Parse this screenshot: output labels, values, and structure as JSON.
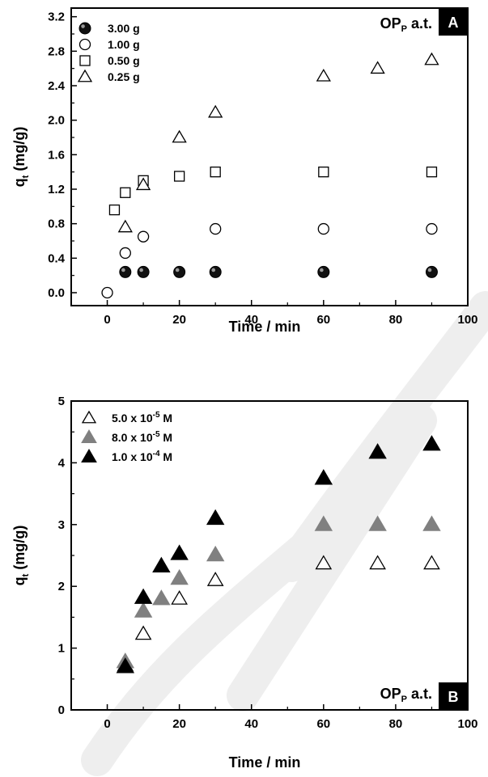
{
  "chart_data": [
    {
      "type": "scatter",
      "panel_label": "A",
      "annotation": {
        "main": "OP",
        "sub": "P",
        "rest": " a.t."
      },
      "xlabel": "Time  / min",
      "ylabel": {
        "main": "q",
        "sub": "t",
        "rest": " (mg/g)"
      },
      "xlim": [
        -10,
        100
      ],
      "ylim": [
        -0.15,
        3.3
      ],
      "xticks": [
        "0",
        "20",
        "40",
        "60",
        "80",
        "100"
      ],
      "yticks": [
        "0.0",
        "0.4",
        "0.8",
        "1.2",
        "1.6",
        "2.0",
        "2.4",
        "2.8",
        "3.2"
      ],
      "legend_position": "top-left",
      "series": [
        {
          "name": "3.00 g",
          "marker": "circle-filled",
          "color": "#000000",
          "x": [
            5,
            10,
            20,
            30,
            60,
            90
          ],
          "y": [
            0.24,
            0.24,
            0.24,
            0.24,
            0.24,
            0.24
          ]
        },
        {
          "name": "1.00 g",
          "marker": "circle-open",
          "color": "#000000",
          "x": [
            0,
            5,
            10,
            30,
            60,
            90
          ],
          "y": [
            0.0,
            0.46,
            0.65,
            0.74,
            0.74,
            0.74
          ]
        },
        {
          "name": "0.50 g",
          "marker": "square-open",
          "color": "#000000",
          "x": [
            2,
            5,
            10,
            20,
            30,
            60,
            90
          ],
          "y": [
            0.96,
            1.16,
            1.3,
            1.35,
            1.4,
            1.4,
            1.4
          ]
        },
        {
          "name": "0.25 g",
          "marker": "triangle-open",
          "color": "#000000",
          "x": [
            5,
            10,
            20,
            30,
            60,
            75,
            90
          ],
          "y": [
            0.76,
            1.25,
            1.8,
            2.09,
            2.51,
            2.6,
            2.7
          ]
        }
      ]
    },
    {
      "type": "scatter",
      "panel_label": "B",
      "annotation": {
        "main": "OP",
        "sub": "P",
        "rest": " a.t."
      },
      "xlabel": "Time  / min",
      "ylabel": {
        "main": "q",
        "sub": "t",
        "rest": " (mg/g)"
      },
      "xlim": [
        -10,
        100
      ],
      "ylim": [
        0,
        5
      ],
      "xticks": [
        "0",
        "20",
        "40",
        "60",
        "80",
        "100"
      ],
      "yticks": [
        "0",
        "1",
        "2",
        "3",
        "4",
        "5"
      ],
      "legend_position": "top-left",
      "series": [
        {
          "name_parts": [
            "5.0 x 10",
            "-5",
            " M"
          ],
          "marker": "triangle-open",
          "color": "#000000",
          "x": [
            5,
            10,
            20,
            30,
            60,
            75,
            90
          ],
          "y": [
            0.72,
            1.23,
            1.8,
            2.1,
            2.37,
            2.37,
            2.37
          ]
        },
        {
          "name_parts": [
            "8.0 x 10",
            "-5",
            " M"
          ],
          "marker": "triangle-filled",
          "color": "#808080",
          "x": [
            5,
            10,
            15,
            20,
            30,
            60,
            75,
            90
          ],
          "y": [
            0.78,
            1.6,
            1.8,
            2.13,
            2.51,
            3.0,
            3.0,
            3.0
          ]
        },
        {
          "name_parts": [
            "1.0 x 10",
            "-4",
            " M"
          ],
          "marker": "triangle-filled",
          "color": "#000000",
          "x": [
            5,
            10,
            15,
            20,
            30,
            60,
            75,
            90
          ],
          "y": [
            0.7,
            1.82,
            2.33,
            2.53,
            3.1,
            3.75,
            4.17,
            4.3
          ]
        }
      ]
    }
  ]
}
